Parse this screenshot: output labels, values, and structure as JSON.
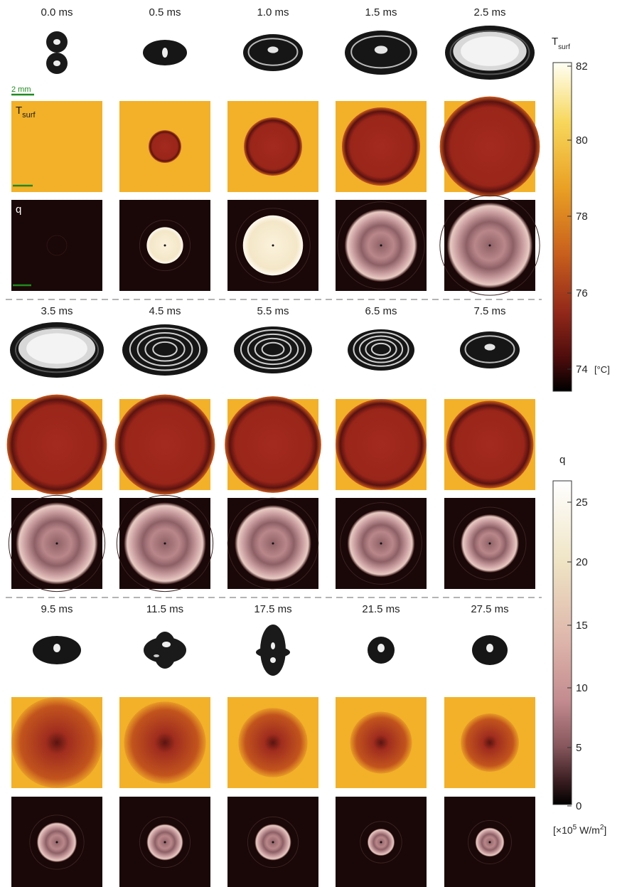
{
  "scale_bar_label": "2 mm",
  "tsurf_label_main": "T",
  "tsurf_label_sub": "surf",
  "q_label": "q",
  "groups": [
    {
      "times": [
        "0.0 ms",
        "0.5 ms",
        "1.0 ms",
        "1.5 ms",
        "2.5 ms"
      ],
      "tsurf_spot_radius_frac": [
        0.0,
        0.18,
        0.32,
        0.43,
        0.55
      ],
      "q_disk_radius_frac": [
        0.0,
        0.2,
        0.33,
        0.4,
        0.47
      ]
    },
    {
      "times": [
        "3.5 ms",
        "4.5 ms",
        "5.5 ms",
        "6.5 ms",
        "7.5 ms"
      ],
      "tsurf_spot_radius_frac": [
        0.55,
        0.55,
        0.53,
        0.5,
        0.48
      ],
      "q_disk_radius_frac": [
        0.45,
        0.45,
        0.42,
        0.37,
        0.32
      ]
    },
    {
      "times": [
        "9.5 ms",
        "11.5 ms",
        "17.5 ms",
        "21.5 ms",
        "27.5 ms"
      ],
      "tsurf_spot_radius_frac": [
        0.5,
        0.45,
        0.38,
        0.34,
        0.32
      ],
      "q_disk_radius_frac": [
        0.22,
        0.2,
        0.2,
        0.15,
        0.16
      ]
    }
  ],
  "colorbar_tsurf": {
    "label_main": "T",
    "label_sub": "surf",
    "ticks": [
      "82",
      "80",
      "78",
      "76",
      "74"
    ],
    "unit": "[°C]",
    "colors": [
      "#fffff2",
      "#f7d45a",
      "#e9a020",
      "#c8601c",
      "#962a1a",
      "#5a1010",
      "#000000"
    ]
  },
  "colorbar_q": {
    "label": "q",
    "ticks": [
      "25",
      "20",
      "15",
      "10",
      "5",
      "0"
    ],
    "unit_prefix": "[×10",
    "unit_exp": "5",
    "unit_mid": " W/m",
    "unit_exp2": "2",
    "unit_suffix": "]",
    "colors": [
      "#ffffff",
      "#f1e8c8",
      "#e3c1b4",
      "#c98f93",
      "#8c5a60",
      "#3a1c1f",
      "#000000"
    ]
  },
  "colors": {
    "tsurf_background": "#f2b128",
    "tsurf_spot": "#a82a20",
    "tsurf_rim": "#4f0f0c",
    "q_background": "#1a0707",
    "q_disk": "#b07e82",
    "q_bright": "#f6eedc",
    "scale_bar": "#1f8a1f",
    "divider": "#888888"
  }
}
